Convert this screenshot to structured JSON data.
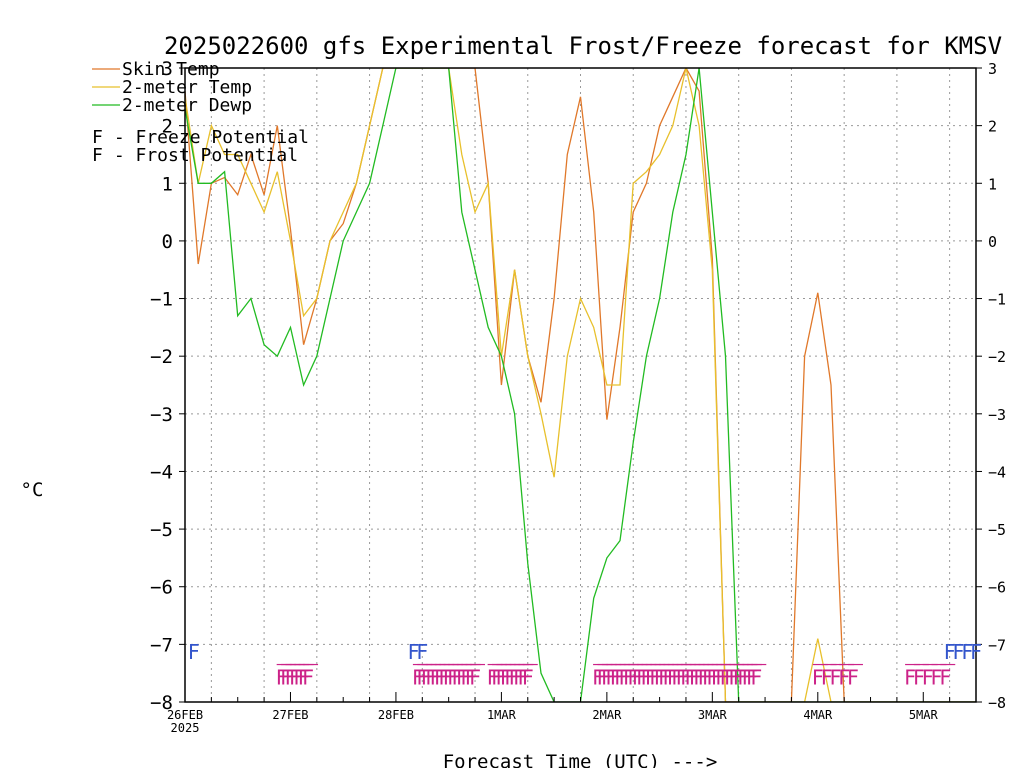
{
  "chart_data": {
    "type": "line",
    "title": "2025022600 gfs Experimental Frost/Freeze forecast for KMSV",
    "ylabel": "°C",
    "xlabel": "Forecast Time (UTC) --->",
    "ylim": [
      -8,
      3
    ],
    "xlim": [
      "2025-02-26 00Z",
      "2025-03-05 12Z"
    ],
    "y_ticks": [
      "3",
      "2",
      "1",
      "0",
      "−1",
      "−2",
      "−3",
      "−4",
      "−5",
      "−6",
      "−7",
      "−8"
    ],
    "x_ticks": [
      "26FEB",
      "27FEB",
      "28FEB",
      "1MAR",
      "2MAR",
      "3MAR",
      "4MAR",
      "5MAR"
    ],
    "x_year_label": "2025",
    "grid": true,
    "legend_position": "top-left",
    "series": [
      {
        "name": "Skin Temp",
        "color": "#e0782a",
        "x_hours": [
          0,
          3,
          6,
          9,
          12,
          15,
          18,
          21,
          24,
          27,
          30,
          33,
          36,
          39,
          42,
          45,
          48,
          51,
          54,
          57,
          60,
          63,
          66,
          69,
          72,
          75,
          78,
          81,
          84,
          87,
          90,
          93,
          96,
          99,
          102,
          105,
          108,
          111,
          114,
          117,
          120,
          123,
          126,
          129,
          132,
          135,
          138,
          141,
          144,
          147,
          150,
          153,
          156,
          159,
          162,
          165,
          168,
          171,
          174,
          177,
          180
        ],
        "values": [
          2.6,
          -0.4,
          1.0,
          1.1,
          0.8,
          1.5,
          0.8,
          2.0,
          0.2,
          -1.8,
          -1.0,
          0.0,
          0.3,
          1.0,
          2.0,
          3.0,
          3.0,
          3.0,
          3.0,
          3.0,
          3.0,
          3.0,
          3.0,
          1.0,
          -2.5,
          -0.5,
          -2.0,
          -2.8,
          -1.0,
          1.5,
          2.5,
          0.5,
          -3.1,
          -1.5,
          0.5,
          1.0,
          2.0,
          2.5,
          3.0,
          2.6,
          -0.3,
          -8.0,
          -8.0,
          -8.0,
          -8.0,
          -8.0,
          -8.0,
          -2.0,
          -0.9,
          -2.5,
          -8.0,
          -8.0,
          -8.0,
          -8.0,
          -8.0,
          -8.0,
          -8.0,
          -8.0,
          -8.0,
          -8.0,
          -8.0
        ]
      },
      {
        "name": "2-meter Temp",
        "color": "#e8c02c",
        "x_hours": [
          0,
          3,
          6,
          9,
          12,
          15,
          18,
          21,
          24,
          27,
          30,
          33,
          36,
          39,
          42,
          45,
          48,
          51,
          54,
          57,
          60,
          63,
          66,
          69,
          72,
          75,
          78,
          81,
          84,
          87,
          90,
          93,
          96,
          99,
          102,
          105,
          108,
          111,
          114,
          117,
          120,
          123,
          126,
          129,
          132,
          135,
          138,
          141,
          144,
          147,
          150,
          153,
          156,
          159,
          162,
          165,
          168,
          171,
          174,
          177,
          180
        ],
        "values": [
          2.5,
          1.0,
          2.0,
          1.5,
          1.5,
          1.0,
          0.5,
          1.2,
          0.0,
          -1.3,
          -1.0,
          0.0,
          0.5,
          1.0,
          2.0,
          3.0,
          3.0,
          3.0,
          3.0,
          3.0,
          3.0,
          1.5,
          0.5,
          1.0,
          -2.0,
          -0.5,
          -2.0,
          -3.0,
          -4.1,
          -2.0,
          -1.0,
          -1.5,
          -2.5,
          -2.5,
          1.0,
          1.2,
          1.5,
          2.0,
          3.0,
          2.0,
          -0.5,
          -8.0,
          -8.0,
          -8.0,
          -8.0,
          -8.0,
          -8.0,
          -8.0,
          -6.9,
          -8.0,
          -8.0,
          -8.0,
          -8.0,
          -8.0,
          -8.0,
          -8.0,
          -8.0,
          -8.0,
          -8.0,
          -8.0,
          -8.0
        ]
      },
      {
        "name": "2-meter Dewp",
        "color": "#22bb22",
        "x_hours": [
          0,
          3,
          6,
          9,
          12,
          15,
          18,
          21,
          24,
          27,
          30,
          33,
          36,
          39,
          42,
          45,
          48,
          51,
          54,
          57,
          60,
          63,
          66,
          69,
          72,
          75,
          78,
          81,
          84,
          87,
          90,
          93,
          96,
          99,
          102,
          105,
          108,
          111,
          114,
          117,
          120,
          123,
          126,
          129,
          132,
          135,
          138,
          141,
          144,
          147,
          150,
          153,
          156,
          159,
          162,
          165,
          168,
          171,
          174,
          177,
          180
        ],
        "values": [
          2.3,
          1.0,
          1.0,
          1.2,
          -1.3,
          -1.0,
          -1.8,
          -2.0,
          -1.5,
          -2.5,
          -2.0,
          -1.0,
          0.0,
          0.5,
          1.0,
          2.0,
          3.0,
          3.0,
          3.0,
          3.0,
          3.0,
          0.5,
          -0.5,
          -1.5,
          -2.0,
          -3.0,
          -5.6,
          -7.5,
          -8.0,
          -8.0,
          -8.0,
          -6.2,
          -5.5,
          -5.2,
          -3.5,
          -2.0,
          -1.0,
          0.5,
          1.5,
          3.0,
          0.5,
          -2.0,
          -8.0,
          -8.0,
          -8.0,
          -8.0,
          -8.0,
          -8.0,
          -8.0,
          -8.0,
          -8.0,
          -8.0,
          -8.0,
          -8.0,
          -8.0,
          -8.0,
          -8.0,
          -8.0,
          -8.0,
          -8.0,
          -8.0
        ]
      }
    ],
    "legend": {
      "skin_label": "Skin Temp",
      "temp_label": "2-meter Temp",
      "dewp_label": "2-meter Dewp",
      "freeze_letter": "F",
      "freeze_label": " - Freeze Potential",
      "frost_letter": "F",
      "frost_label": " - Frost Potential"
    },
    "freeze_flags": {
      "color": "#cc2288",
      "label": "F",
      "x_hours": [
        22,
        23,
        24,
        25,
        26,
        27,
        28,
        53,
        54,
        55,
        56,
        57,
        58,
        59,
        60,
        61,
        62,
        63,
        64,
        65,
        66,
        70,
        71,
        72,
        73,
        74,
        75,
        76,
        77,
        78,
        94,
        95,
        96,
        97,
        98,
        99,
        100,
        101,
        102,
        103,
        104,
        105,
        106,
        107,
        108,
        109,
        110,
        111,
        112,
        113,
        114,
        115,
        116,
        117,
        118,
        119,
        120,
        121,
        122,
        123,
        124,
        125,
        126,
        127,
        128,
        129,
        130,
        144,
        146,
        148,
        150,
        152,
        165,
        167,
        169,
        171,
        173
      ]
    },
    "frost_flags": {
      "color": "#3355cc",
      "label": "F",
      "x_hours": [
        2,
        52,
        54,
        174,
        176,
        178,
        180
      ]
    }
  }
}
